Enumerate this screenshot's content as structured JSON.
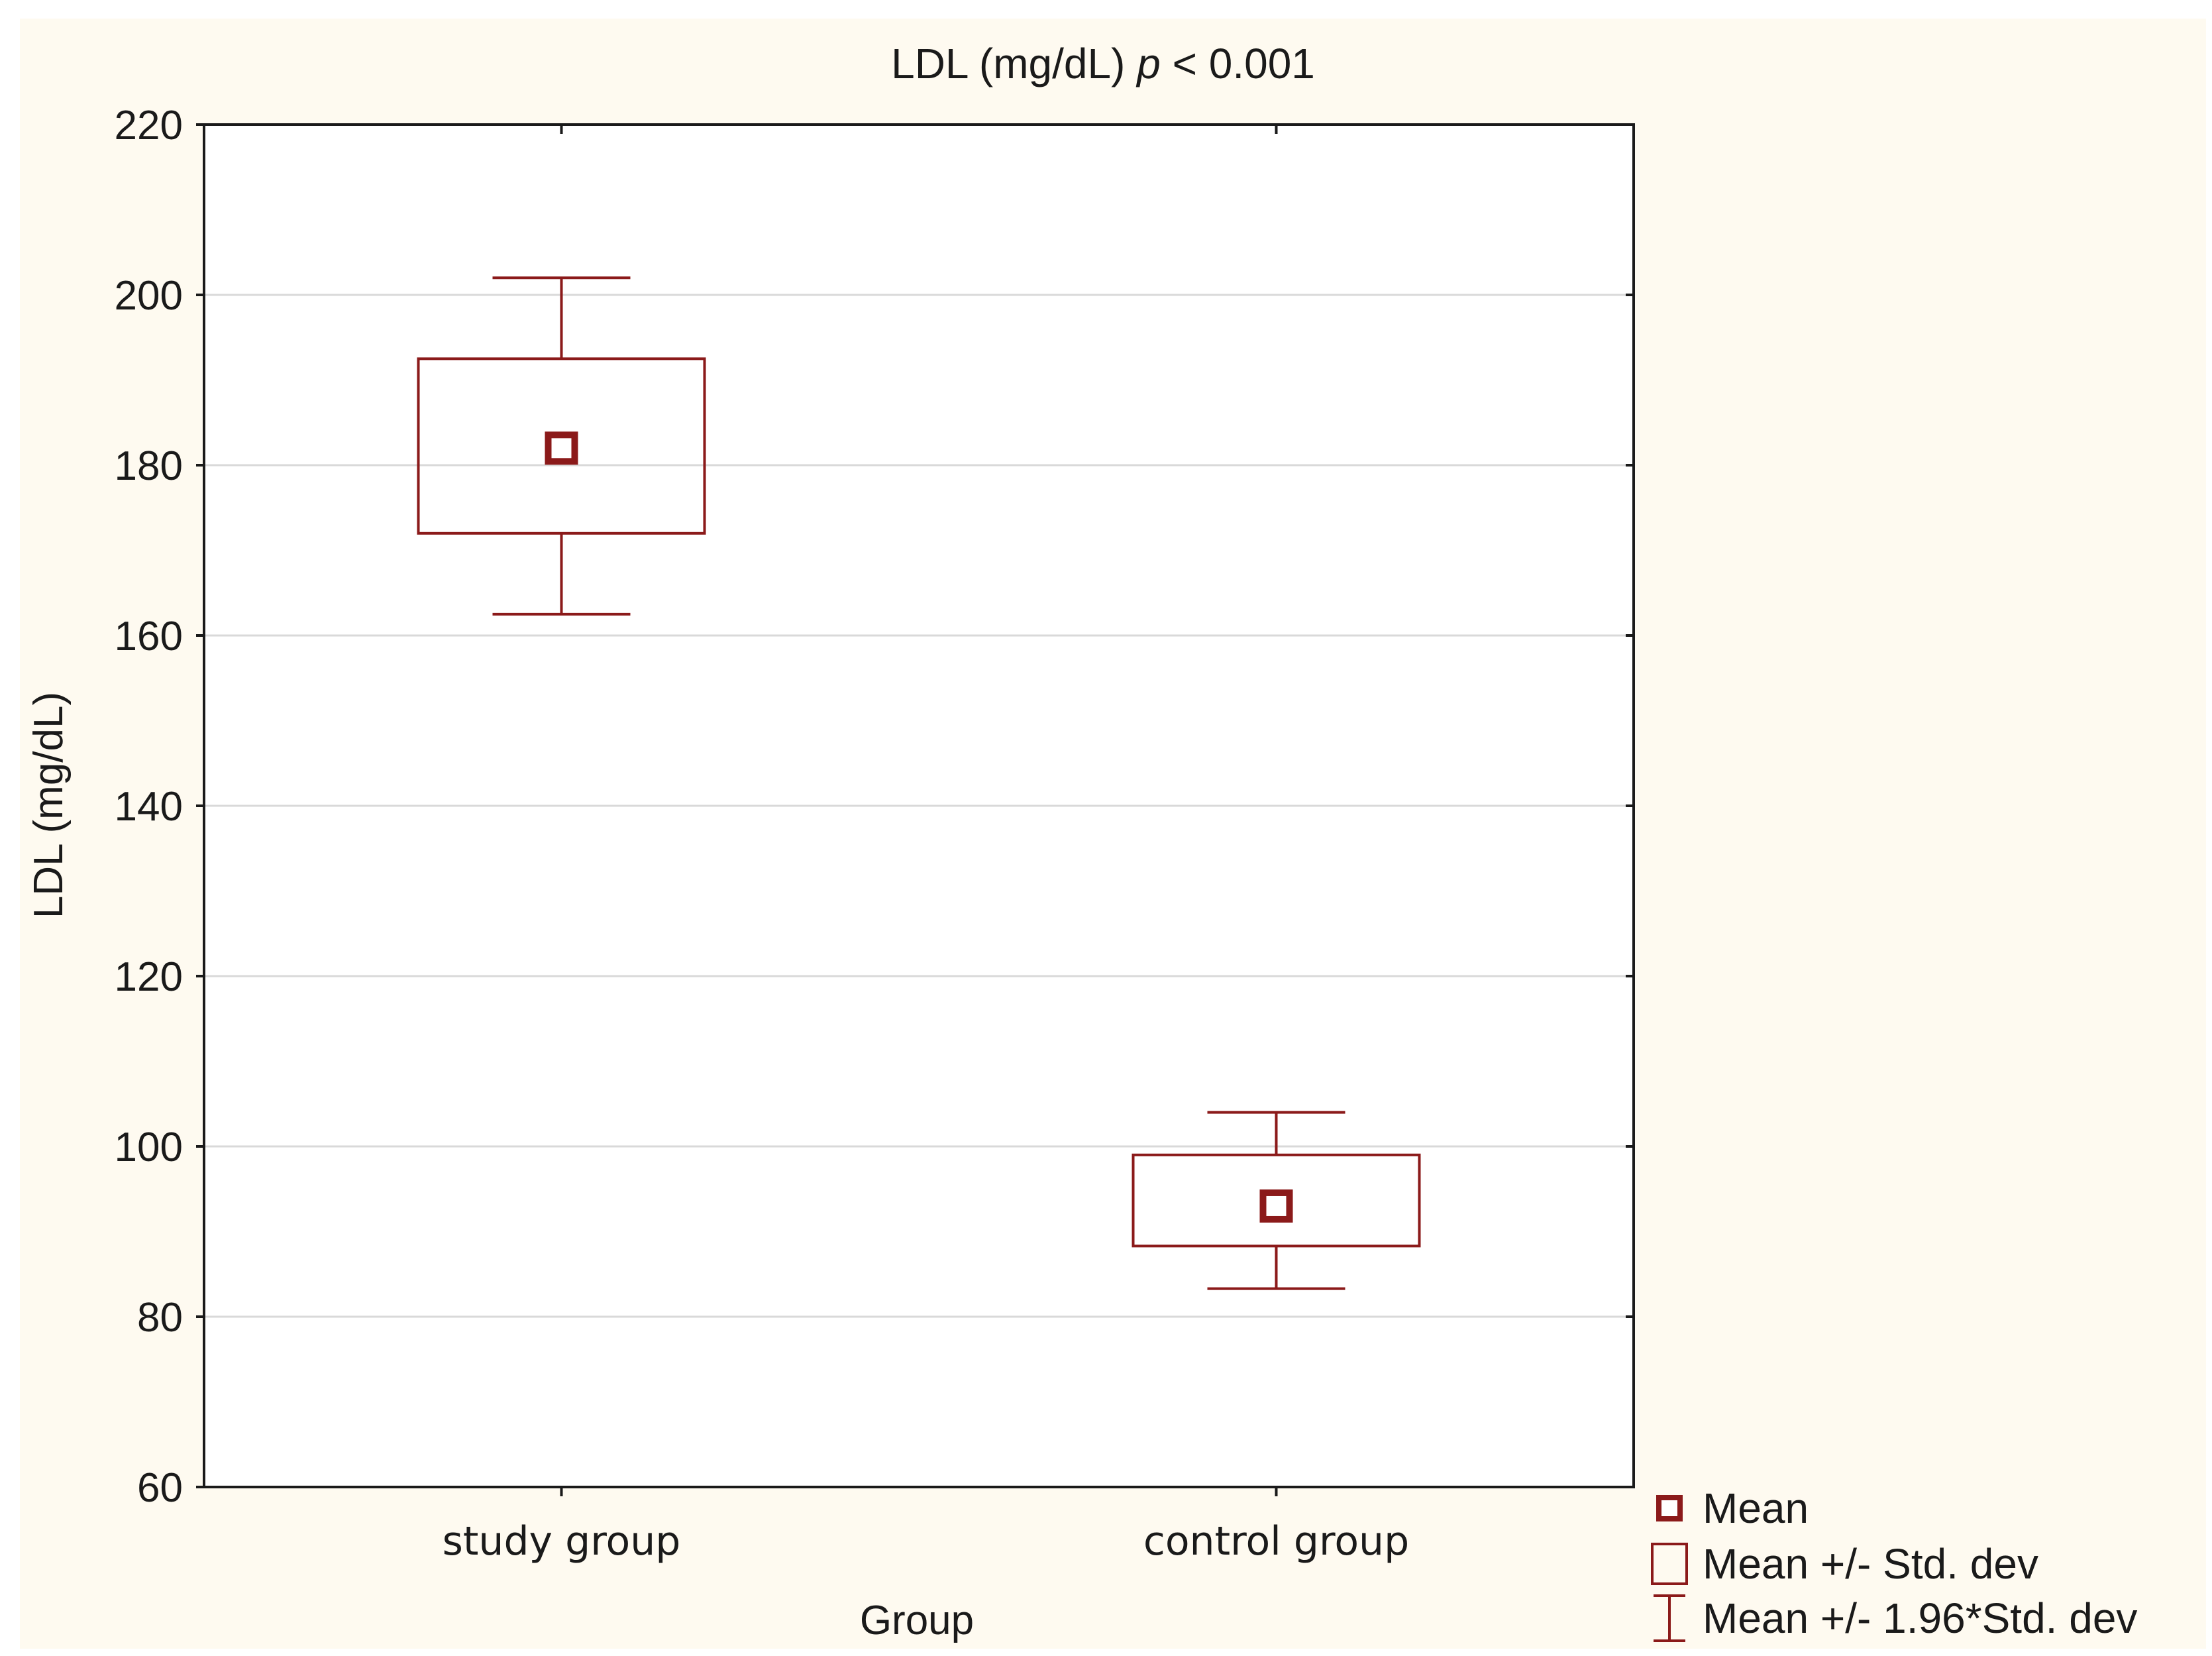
{
  "colors": {
    "background": "#fefaf0",
    "plot_background": "#ffffff",
    "series": "#8b1a1a",
    "grid": "#d9d9d9",
    "axis": "#1a1a1a"
  },
  "chart_data": {
    "type": "box",
    "title": "LDL (mg/dL)",
    "title_p_symbol": "p",
    "title_p_value": "< 0.001",
    "xlabel": "Group",
    "ylabel": "LDL (mg/dL)",
    "ylim": [
      60,
      220
    ],
    "yticks": [
      60,
      80,
      100,
      120,
      140,
      160,
      180,
      200,
      220
    ],
    "ytick_labels": [
      "60",
      "80",
      "100",
      "120",
      "140",
      "160",
      "180",
      "200",
      "220"
    ],
    "grid": true,
    "legend_position": "bottom-right, outside plot",
    "categories": [
      "study group",
      "control group"
    ],
    "series": [
      {
        "name": "study group",
        "mean": 182,
        "sd_low": 172,
        "sd_high": 192.5,
        "ci_low": 162.5,
        "ci_high": 202
      },
      {
        "name": "control group",
        "mean": 93,
        "sd_low": 88.3,
        "sd_high": 99,
        "ci_low": 83.3,
        "ci_high": 104
      }
    ],
    "legend": [
      {
        "symbol": "mean-marker",
        "label": "Mean"
      },
      {
        "symbol": "sd-box",
        "label": "Mean +/- Std. dev"
      },
      {
        "symbol": "ci-whisker",
        "label": "Mean +/- 1.96*Std. dev"
      }
    ]
  }
}
